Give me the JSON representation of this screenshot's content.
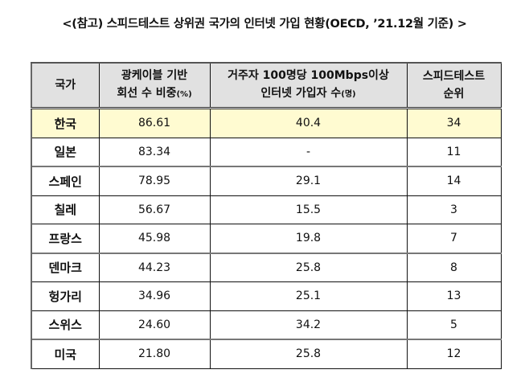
{
  "title": "<(참고) 스피드테스트 상위권 국가의 인터넷 가입 현황(OECD, ’21.12월 기준) >",
  "table": {
    "headers": [
      {
        "line1": "국가",
        "line2": "",
        "unit": ""
      },
      {
        "line1": "광케이블 기반",
        "line2": "회선 수 비중",
        "unit": "(%)"
      },
      {
        "line1": "거주자 100명당 100Mbps이상",
        "line2": "인터넷 가입자 수",
        "unit": "(명)"
      },
      {
        "line1": "스피드테스트",
        "line2": "순위",
        "unit": ""
      }
    ],
    "rows": [
      {
        "country": "한국",
        "fiber_share": "86.61",
        "subscribers_per_100": "40.4",
        "speedtest_rank": "34",
        "highlight": true
      },
      {
        "country": "일본",
        "fiber_share": "83.34",
        "subscribers_per_100": "-",
        "speedtest_rank": "11"
      },
      {
        "country": "스페인",
        "fiber_share": "78.95",
        "subscribers_per_100": "29.1",
        "speedtest_rank": "14"
      },
      {
        "country": "칠레",
        "fiber_share": "56.67",
        "subscribers_per_100": "15.5",
        "speedtest_rank": "3"
      },
      {
        "country": "프랑스",
        "fiber_share": "45.98",
        "subscribers_per_100": "19.8",
        "speedtest_rank": "7"
      },
      {
        "country": "덴마크",
        "fiber_share": "44.23",
        "subscribers_per_100": "25.8",
        "speedtest_rank": "8"
      },
      {
        "country": "헝가리",
        "fiber_share": "34.96",
        "subscribers_per_100": "25.1",
        "speedtest_rank": "13"
      },
      {
        "country": "스위스",
        "fiber_share": "24.60",
        "subscribers_per_100": "34.2",
        "speedtest_rank": "5"
      },
      {
        "country": "미국",
        "fiber_share": "21.80",
        "subscribers_per_100": "25.8",
        "speedtest_rank": "12"
      }
    ]
  },
  "colors": {
    "header_bg": "#e1e1e1",
    "highlight_row_bg": "#fffbd1",
    "border": "#111111"
  }
}
